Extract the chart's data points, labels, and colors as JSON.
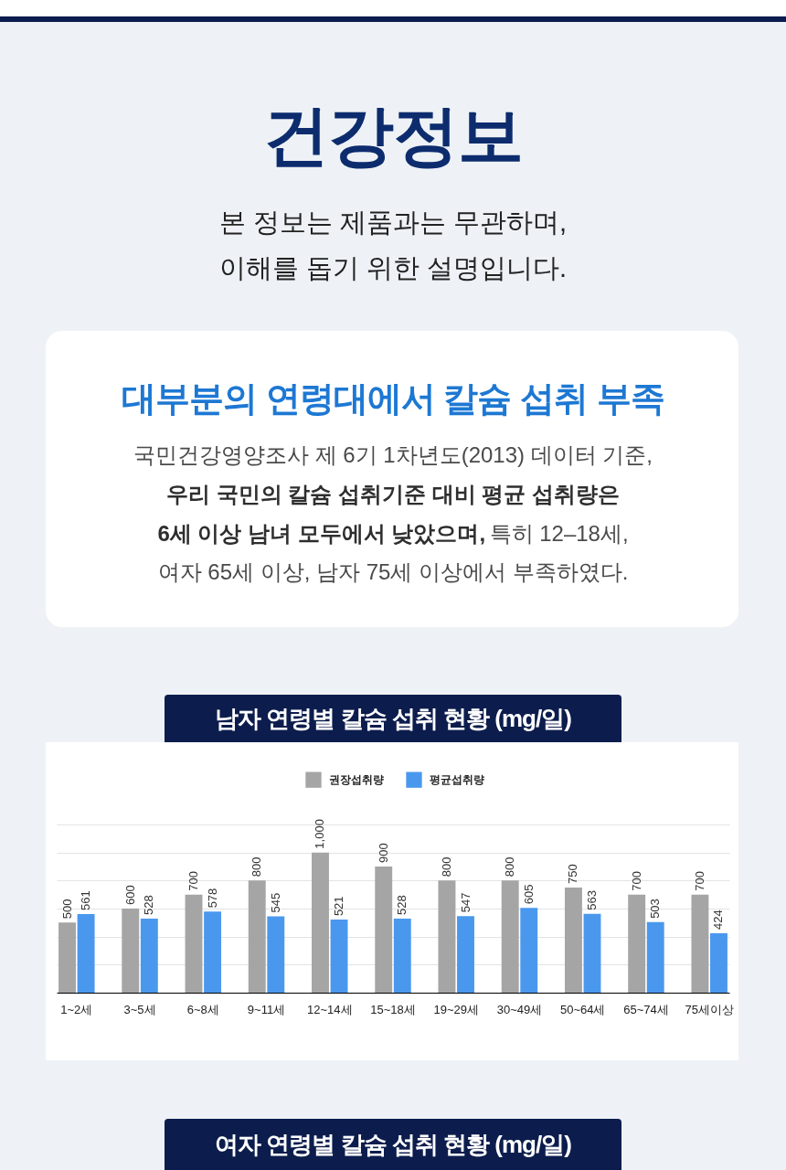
{
  "chart_data": {
    "type": "bar",
    "title": "남자 연령별 칼슘 섭취 현황 (mg/일)",
    "annotations": [
      "건강정보",
      "본 정보는 제품과는 무관하며,",
      "이해를 돕기 위한 설명입니다.",
      "대부분의 연령대에서 칼슘 섭취 부족",
      "국민건강영양조사 제 6기 1차년도(2013) 데이터 기준,",
      "우리 국민의 칼슘 섭취기준 대비 평균 섭취량은",
      "6세 이상 남녀 모두에서 낮았으며,",
      "특히 12–18세,",
      "여자 65세 이상, 남자 75세 이상에서 부족하였다.",
      "여자 연령별 칼슘 섭취 현황 (mg/일)"
    ],
    "categories": [
      "1~2세",
      "3~5세",
      "6~8세",
      "9~11세",
      "12~14세",
      "15~18세",
      "19~29세",
      "30~49세",
      "50~64세",
      "65~74세",
      "75세이상"
    ],
    "series": [
      {
        "name": "권장섭취량",
        "color": "#a5a5a5",
        "values": [
          500,
          600,
          700,
          800,
          1000,
          900,
          800,
          800,
          750,
          700,
          700
        ],
        "value_labels": [
          "500",
          "600",
          "700",
          "800",
          "1,000",
          "900",
          "800",
          "800",
          "750",
          "700",
          "700"
        ]
      },
      {
        "name": "평균섭취량",
        "color": "#4a98ee",
        "values": [
          561,
          528,
          578,
          545,
          521,
          528,
          547,
          605,
          563,
          503,
          424
        ],
        "value_labels": [
          "561",
          "528",
          "578",
          "545",
          "521",
          "528",
          "547",
          "605",
          "563",
          "503",
          "424"
        ]
      }
    ],
    "ylim": [
      0,
      1200
    ],
    "yticks": [
      {
        "value": 0,
        "label": null
      },
      {
        "value": 200,
        "label": null
      },
      {
        "value": 400,
        "label": null
      },
      {
        "value": 600,
        "label": null
      },
      {
        "value": 800,
        "label": null
      },
      {
        "value": 1000,
        "label": null
      },
      {
        "value": 1200,
        "label": null
      }
    ],
    "grid": "y",
    "tick_labels": "x",
    "legend": "top"
  }
}
